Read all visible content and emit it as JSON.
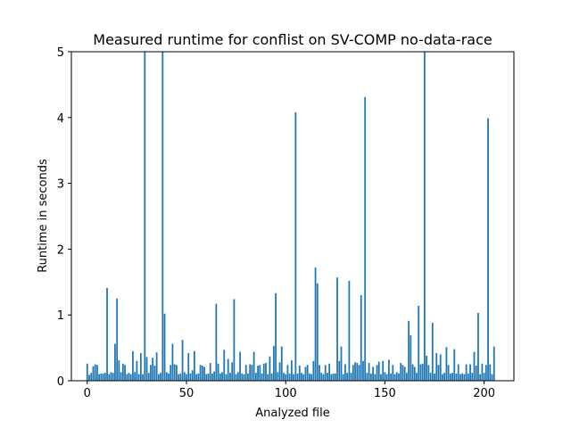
{
  "chart_data": {
    "type": "bar",
    "title": "Measured runtime for conflist on SV-COMP no-data-race",
    "xlabel": "Analyzed file",
    "ylabel": "Runtime in seconds",
    "xlim": [
      -8,
      215
    ],
    "ylim": [
      0,
      5
    ],
    "xticks": [
      0,
      50,
      100,
      150,
      200
    ],
    "yticks": [
      0,
      1,
      2,
      3,
      4,
      5
    ],
    "bar_width": 0.8,
    "grid": false,
    "bar_color": "#1f77b4",
    "values": [
      0.26,
      0.09,
      0.12,
      0.22,
      0.25,
      0.24,
      0.1,
      0.11,
      0.11,
      0.12,
      1.41,
      0.1,
      0.13,
      0.12,
      0.56,
      1.25,
      0.31,
      0.13,
      0.26,
      0.24,
      0.1,
      0.12,
      0.1,
      0.45,
      0.13,
      0.3,
      0.1,
      0.42,
      0.1,
      5.0,
      0.36,
      0.12,
      0.24,
      0.35,
      0.23,
      0.43,
      0.1,
      0.12,
      5.0,
      1.02,
      0.13,
      0.11,
      0.24,
      0.56,
      0.25,
      0.24,
      0.1,
      0.11,
      0.62,
      0.13,
      0.1,
      0.42,
      0.11,
      0.16,
      0.45,
      0.1,
      0.11,
      0.24,
      0.23,
      0.21,
      0.1,
      0.11,
      0.27,
      0.11,
      0.14,
      1.17,
      0.26,
      0.11,
      0.13,
      0.47,
      0.1,
      0.33,
      0.12,
      0.28,
      1.24,
      0.1,
      0.13,
      0.44,
      0.11,
      0.1,
      0.24,
      0.11,
      0.25,
      0.24,
      0.44,
      0.12,
      0.23,
      0.24,
      0.11,
      0.26,
      0.27,
      0.1,
      0.37,
      0.11,
      0.53,
      1.33,
      0.13,
      0.28,
      0.52,
      0.12,
      0.1,
      0.24,
      0.11,
      0.31,
      0.1,
      4.08,
      0.11,
      0.23,
      0.12,
      0.1,
      0.21,
      0.24,
      0.11,
      0.1,
      0.3,
      1.72,
      1.48,
      0.24,
      0.12,
      0.1,
      0.24,
      0.12,
      0.26,
      0.1,
      0.11,
      0.11,
      1.57,
      0.3,
      0.52,
      0.1,
      0.25,
      0.12,
      1.52,
      0.12,
      0.24,
      0.28,
      0.27,
      0.24,
      1.3,
      0.3,
      4.31,
      0.12,
      0.27,
      0.11,
      0.21,
      0.1,
      0.24,
      0.29,
      0.1,
      0.3,
      0.13,
      0.1,
      0.32,
      0.11,
      0.24,
      0.1,
      0.13,
      0.11,
      0.27,
      0.24,
      0.21,
      0.12,
      0.91,
      0.69,
      0.25,
      0.21,
      0.12,
      1.14,
      0.25,
      0.26,
      5.0,
      0.38,
      0.24,
      0.12,
      0.88,
      0.11,
      0.42,
      0.24,
      0.4,
      0.1,
      0.12,
      0.51,
      0.24,
      0.11,
      0.12,
      0.48,
      0.11,
      0.25,
      0.1,
      0.11,
      0.1,
      0.25,
      0.11,
      0.25,
      0.12,
      0.44,
      0.23,
      1.03,
      0.1,
      0.26,
      0.12,
      0.24,
      3.99,
      0.25,
      0.1,
      0.52
    ]
  }
}
